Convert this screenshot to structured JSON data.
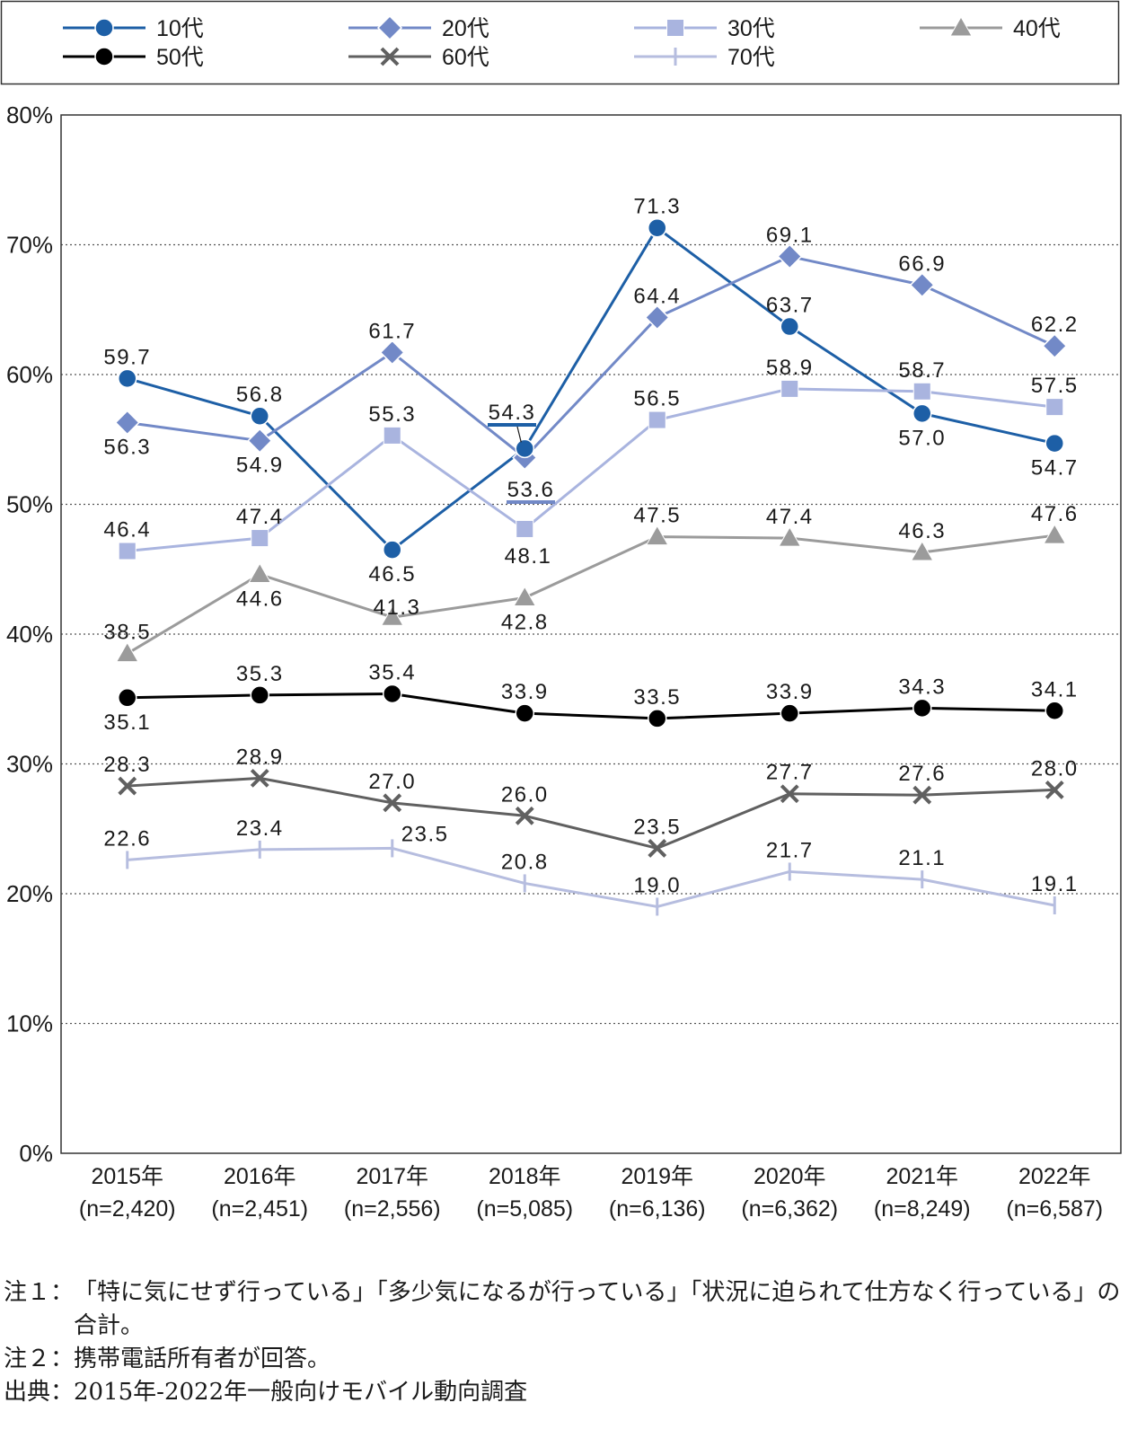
{
  "chart_data": {
    "type": "line",
    "categories": [
      "2015年",
      "2016年",
      "2017年",
      "2018年",
      "2019年",
      "2020年",
      "2021年",
      "2022年"
    ],
    "category_n": [
      "(n=2,420)",
      "(n=2,451)",
      "(n=2,556)",
      "(n=5,085)",
      "(n=6,136)",
      "(n=6,362)",
      "(n=8,249)",
      "(n=6,587)"
    ],
    "ylim": [
      0,
      80
    ],
    "yticks": [
      "0%",
      "10%",
      "20%",
      "30%",
      "40%",
      "50%",
      "60%",
      "70%",
      "80%"
    ],
    "grid": "horizontal dotted",
    "legend_position": "top",
    "series": [
      {
        "name": "10代",
        "values": [
          59.7,
          56.8,
          46.5,
          54.3,
          71.3,
          63.7,
          57.0,
          54.7
        ],
        "color": "#1d5fa6",
        "marker": "circle"
      },
      {
        "name": "20代",
        "values": [
          56.3,
          54.9,
          61.7,
          53.6,
          64.4,
          69.1,
          66.9,
          62.2
        ],
        "color": "#7289c7",
        "marker": "diamond"
      },
      {
        "name": "30代",
        "values": [
          46.4,
          47.4,
          55.3,
          48.1,
          56.5,
          58.9,
          58.7,
          57.5
        ],
        "color": "#a9b4df",
        "marker": "square"
      },
      {
        "name": "40代",
        "values": [
          38.5,
          44.6,
          41.3,
          42.8,
          47.5,
          47.4,
          46.3,
          47.6
        ],
        "color": "#9b9b9b",
        "marker": "triangle"
      },
      {
        "name": "50代",
        "values": [
          35.1,
          35.3,
          35.4,
          33.9,
          33.5,
          33.9,
          34.3,
          34.1
        ],
        "color": "#000000",
        "marker": "circle"
      },
      {
        "name": "60代",
        "values": [
          28.3,
          28.9,
          27.0,
          26.0,
          23.5,
          27.7,
          27.6,
          28.0
        ],
        "color": "#606060",
        "marker": "x"
      },
      {
        "name": "70代",
        "values": [
          22.6,
          23.4,
          23.5,
          20.8,
          19.0,
          21.7,
          21.1,
          19.1
        ],
        "color": "#b6bddf",
        "marker": "plus"
      }
    ]
  },
  "notes": [
    {
      "label": "注１：",
      "text": "「特に気にせず行っている」「多少気になるが行っている」「状況に迫られて仕方なく行っている」の合計。"
    },
    {
      "label": "注２：",
      "text": "携帯電話所有者が回答。"
    },
    {
      "label": "出典：",
      "text": "2015年-2022年一般向けモバイル動向調査"
    }
  ]
}
